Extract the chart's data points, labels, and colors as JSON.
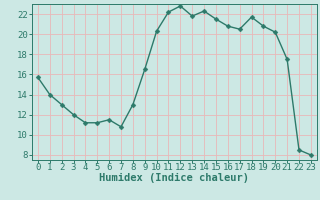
{
  "x": [
    0,
    1,
    2,
    3,
    4,
    5,
    6,
    7,
    8,
    9,
    10,
    11,
    12,
    13,
    14,
    15,
    16,
    17,
    18,
    19,
    20,
    21,
    22,
    23
  ],
  "y": [
    15.7,
    14.0,
    13.0,
    12.0,
    11.2,
    11.2,
    11.5,
    10.8,
    13.0,
    16.5,
    20.3,
    22.2,
    22.8,
    21.8,
    22.3,
    21.5,
    20.8,
    20.5,
    21.7,
    20.8,
    20.2,
    17.5,
    8.5,
    8.0
  ],
  "line_color": "#2d7a6a",
  "marker": "D",
  "marker_size": 2.5,
  "bg_color": "#cce8e4",
  "grid_color": "#e8b8b8",
  "xlabel": "Humidex (Indice chaleur)",
  "ylabel": "",
  "xlim": [
    -0.5,
    23.5
  ],
  "ylim": [
    7.5,
    23.0
  ],
  "yticks": [
    8,
    10,
    12,
    14,
    16,
    18,
    20,
    22
  ],
  "xticks": [
    0,
    1,
    2,
    3,
    4,
    5,
    6,
    7,
    8,
    9,
    10,
    11,
    12,
    13,
    14,
    15,
    16,
    17,
    18,
    19,
    20,
    21,
    22,
    23
  ],
  "xlabel_fontsize": 7.5,
  "tick_fontsize": 6.5,
  "line_width": 1.0
}
